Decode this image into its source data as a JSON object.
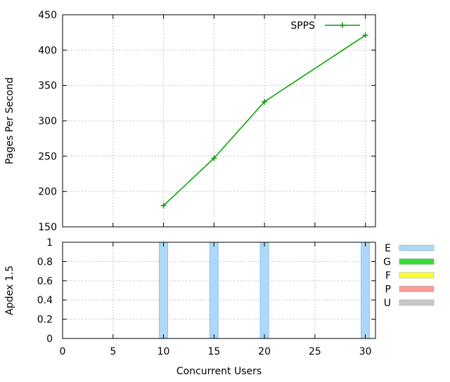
{
  "chart_data": [
    {
      "type": "line",
      "xlabel": "",
      "ylabel": "Pages Per Second",
      "xlim": [
        0,
        31
      ],
      "ylim": [
        150,
        450
      ],
      "yticks": [
        150,
        200,
        250,
        300,
        350,
        400,
        450
      ],
      "xticks": [
        0,
        5,
        10,
        15,
        20,
        25,
        30
      ],
      "grid": true,
      "legend_position": "top-right",
      "series": [
        {
          "name": "SPPS",
          "color": "#00a000",
          "marker": "plus",
          "x": [
            10,
            15,
            20,
            30
          ],
          "y": [
            180,
            247,
            327,
            421
          ]
        }
      ]
    },
    {
      "type": "bar",
      "xlabel": "Concurrent Users",
      "ylabel": "Apdex 1.5",
      "xlim": [
        0,
        31
      ],
      "ylim": [
        0,
        1
      ],
      "yticks": [
        "0",
        "0.2",
        "0.4",
        "0.6",
        "0.8",
        "1"
      ],
      "xticks": [
        "0",
        "5",
        "10",
        "15",
        "20",
        "25",
        "30"
      ],
      "grid": true,
      "x": [
        10,
        15,
        20,
        30
      ],
      "values": [
        1,
        1,
        1,
        1
      ],
      "category_colors": {
        "E": "#add8f7",
        "G": "#33dd33",
        "F": "#ffff33",
        "P": "#ff9999",
        "U": "#c8c8c8"
      },
      "bar_category": [
        "E",
        "E",
        "E",
        "E"
      ],
      "legend_position": "right",
      "legend": [
        "E",
        "G",
        "F",
        "P",
        "U"
      ]
    }
  ]
}
